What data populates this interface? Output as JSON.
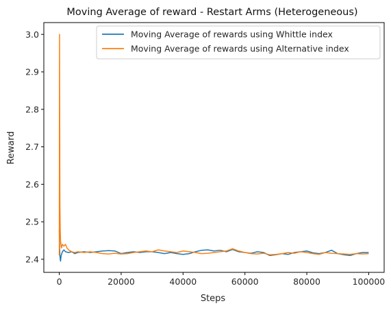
{
  "chart_data": {
    "type": "line",
    "title": "Moving Average of reward - Restart Arms (Heterogeneous)",
    "xlabel": "Steps",
    "ylabel": "Reward",
    "xlim": [
      -5000,
      105000
    ],
    "ylim": [
      2.365,
      3.0315
    ],
    "xticks": [
      0,
      20000,
      40000,
      60000,
      80000,
      100000
    ],
    "xtick_labels": [
      "0",
      "20000",
      "40000",
      "60000",
      "80000",
      "100000"
    ],
    "yticks": [
      2.4,
      2.5,
      2.6,
      2.7,
      2.8,
      2.9,
      3.0
    ],
    "ytick_labels": [
      "2.4",
      "2.5",
      "2.6",
      "2.7",
      "2.8",
      "2.9",
      "3.0"
    ],
    "grid": false,
    "legend_position": "top-right",
    "series": [
      {
        "name": "Moving Average of rewards using Whittle index",
        "color": "#1f77b4",
        "x": [
          0,
          100,
          200,
          300,
          400,
          600,
          800,
          1000,
          1500,
          2000,
          3000,
          4000,
          5000,
          6000,
          8000,
          10000,
          12000,
          14000,
          16000,
          18000,
          20000,
          22000,
          24000,
          26000,
          28000,
          30000,
          32000,
          34000,
          36000,
          38000,
          40000,
          42000,
          44000,
          46000,
          48000,
          50000,
          52000,
          54000,
          56000,
          58000,
          60000,
          62000,
          64000,
          66000,
          68000,
          70000,
          72000,
          74000,
          76000,
          78000,
          80000,
          82000,
          84000,
          86000,
          88000,
          90000,
          92000,
          94000,
          96000,
          98000,
          100000
        ],
        "values": [
          2.48,
          2.43,
          2.41,
          2.4,
          2.395,
          2.41,
          2.415,
          2.42,
          2.425,
          2.42,
          2.418,
          2.42,
          2.415,
          2.418,
          2.42,
          2.418,
          2.42,
          2.422,
          2.423,
          2.422,
          2.415,
          2.418,
          2.42,
          2.418,
          2.42,
          2.42,
          2.418,
          2.415,
          2.418,
          2.415,
          2.413,
          2.415,
          2.42,
          2.424,
          2.425,
          2.422,
          2.424,
          2.42,
          2.426,
          2.42,
          2.418,
          2.416,
          2.42,
          2.418,
          2.41,
          2.412,
          2.415,
          2.413,
          2.418,
          2.42,
          2.422,
          2.417,
          2.415,
          2.418,
          2.424,
          2.415,
          2.412,
          2.41,
          2.415,
          2.418,
          2.418
        ]
      },
      {
        "name": "Moving Average of rewards using Alternative index",
        "color": "#ff7f0e",
        "x": [
          0,
          80,
          150,
          200,
          300,
          400,
          500,
          700,
          1000,
          1500,
          2000,
          2500,
          3000,
          4000,
          5000,
          6000,
          8000,
          10000,
          12000,
          14000,
          16000,
          18000,
          20000,
          22000,
          24000,
          26000,
          28000,
          30000,
          32000,
          34000,
          36000,
          38000,
          40000,
          42000,
          44000,
          46000,
          48000,
          50000,
          52000,
          54000,
          56000,
          58000,
          60000,
          62000,
          64000,
          66000,
          68000,
          70000,
          72000,
          74000,
          76000,
          78000,
          80000,
          82000,
          84000,
          86000,
          88000,
          90000,
          92000,
          94000,
          96000,
          98000,
          100000
        ],
        "values": [
          2.41,
          3.0,
          2.75,
          2.55,
          2.48,
          2.45,
          2.44,
          2.43,
          2.44,
          2.435,
          2.44,
          2.43,
          2.425,
          2.42,
          2.418,
          2.42,
          2.418,
          2.42,
          2.418,
          2.415,
          2.414,
          2.416,
          2.414,
          2.415,
          2.418,
          2.42,
          2.422,
          2.42,
          2.425,
          2.422,
          2.42,
          2.418,
          2.422,
          2.42,
          2.418,
          2.415,
          2.416,
          2.418,
          2.42,
          2.422,
          2.428,
          2.422,
          2.418,
          2.415,
          2.414,
          2.416,
          2.412,
          2.413,
          2.415,
          2.418,
          2.416,
          2.42,
          2.418,
          2.415,
          2.413,
          2.418,
          2.416,
          2.415,
          2.414,
          2.413,
          2.415,
          2.414,
          2.415
        ]
      }
    ]
  }
}
